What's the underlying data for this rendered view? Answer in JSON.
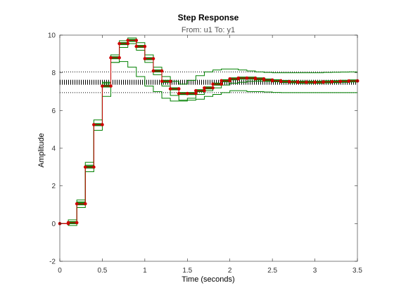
{
  "chart_data": {
    "type": "line",
    "title": "Step Response",
    "subtitle": "From: u1  To: y1",
    "xlabel": "Time (seconds)",
    "ylabel": "Amplitude",
    "xlim": [
      0,
      3.5
    ],
    "ylim": [
      -2,
      10
    ],
    "x_ticks": [
      0,
      0.5,
      1,
      1.5,
      2,
      2.5,
      3,
      3.5
    ],
    "x_tick_labels": [
      "0",
      "0.5",
      "1",
      "1.5",
      "2",
      "2.5",
      "3",
      "3.5"
    ],
    "y_ticks": [
      -2,
      0,
      2,
      4,
      6,
      8,
      10
    ],
    "y_tick_labels": [
      "-2",
      "0",
      "2",
      "4",
      "6",
      "8",
      "10"
    ],
    "grid": false,
    "steady_state": 7.5,
    "steady_state_upper": 8.05,
    "steady_state_lower": 6.95,
    "sample_time": 0.1,
    "series": [
      {
        "color": "#cc0000",
        "style": "stairs-with-markers",
        "x": [
          0,
          0.1,
          0.2,
          0.3,
          0.4,
          0.5,
          0.6,
          0.7,
          0.8,
          0.9,
          1.0,
          1.1,
          1.2,
          1.3,
          1.4,
          1.5,
          1.6,
          1.7,
          1.8,
          1.9,
          2.0,
          2.1,
          2.2,
          2.3,
          2.4,
          2.5,
          2.6,
          2.7,
          2.8,
          2.9,
          3.0,
          3.1,
          3.2,
          3.3,
          3.4,
          3.5
        ],
        "values": [
          0,
          0.05,
          1.05,
          3.0,
          5.25,
          7.3,
          8.8,
          9.55,
          9.72,
          9.4,
          8.75,
          8.1,
          7.55,
          7.15,
          6.9,
          6.9,
          7.05,
          7.2,
          7.4,
          7.58,
          7.68,
          7.72,
          7.72,
          7.68,
          7.62,
          7.58,
          7.54,
          7.52,
          7.5,
          7.5,
          7.5,
          7.52,
          7.53,
          7.55,
          7.57,
          7.57
        ]
      },
      {
        "color": "#008000",
        "style": "stairs",
        "x": [
          0,
          0.1,
          0.2,
          0.3,
          0.4,
          0.5,
          0.6,
          0.7,
          0.8,
          0.9,
          1.0,
          1.1,
          1.2,
          1.3,
          1.4,
          1.5,
          1.6,
          1.7,
          1.8,
          1.9,
          2.0,
          2.1,
          2.2,
          2.3,
          2.4,
          2.5,
          2.6,
          2.7,
          2.8,
          2.9,
          3.0,
          3.1,
          3.2,
          3.3,
          3.4,
          3.5
        ],
        "values": [
          0,
          0.2,
          1.25,
          3.25,
          5.5,
          7.5,
          8.95,
          9.7,
          9.85,
          9.6,
          8.95,
          8.3,
          7.8,
          7.55,
          7.4,
          7.6,
          7.85,
          8.05,
          8.15,
          8.2,
          8.2,
          8.15,
          8.1,
          8.05,
          8.02,
          8.0,
          8.0,
          8.0,
          8.0,
          8.0,
          8.0,
          8.02,
          8.03,
          8.04,
          8.05,
          8.05
        ]
      },
      {
        "color": "#008000",
        "style": "stairs",
        "x": [
          0,
          0.1,
          0.2,
          0.3,
          0.4,
          0.5,
          0.6,
          0.7,
          0.8,
          0.9,
          1.0,
          1.1,
          1.2,
          1.3,
          1.4,
          1.5,
          1.6,
          1.7,
          1.8,
          1.9,
          2.0,
          2.1,
          2.2,
          2.3,
          2.4,
          2.5,
          2.6,
          2.7,
          2.8,
          2.9,
          3.0,
          3.1,
          3.2,
          3.3,
          3.4,
          3.5
        ],
        "values": [
          0,
          -0.1,
          0.85,
          2.75,
          4.95,
          6.75,
          8.55,
          9.35,
          9.55,
          9.2,
          8.55,
          7.9,
          7.3,
          6.8,
          6.55,
          6.55,
          6.6,
          6.75,
          6.85,
          6.95,
          7.05,
          7.05,
          7.0,
          7.0,
          6.98,
          6.96,
          6.95,
          6.95,
          6.95,
          6.95,
          6.95,
          6.95,
          6.95,
          6.95,
          6.95,
          6.95
        ]
      },
      {
        "color": "#008000",
        "style": "stairs",
        "x": [
          0,
          0.1,
          0.2,
          0.3,
          0.4,
          0.5,
          0.6,
          0.7,
          0.8,
          0.9,
          1.0,
          1.1,
          1.2,
          1.3,
          1.4,
          1.5,
          1.6,
          1.7,
          1.8,
          1.9,
          2.0,
          2.1,
          2.2,
          2.3,
          2.4,
          2.5,
          2.6,
          2.7,
          2.8,
          2.9,
          3.0,
          3.1,
          3.2,
          3.3,
          3.4,
          3.5
        ],
        "values": [
          0,
          0.1,
          1.15,
          3.1,
          5.3,
          7.45,
          8.55,
          8.6,
          8.3,
          7.8,
          7.3,
          7.0,
          6.65,
          6.5,
          6.5,
          6.65,
          6.85,
          7.05,
          7.2,
          7.35,
          7.45,
          7.5,
          7.55,
          7.55,
          7.55,
          7.55,
          7.55,
          7.55,
          7.55,
          7.55,
          7.55,
          7.55,
          7.55,
          7.55,
          7.55,
          7.55
        ]
      }
    ]
  }
}
